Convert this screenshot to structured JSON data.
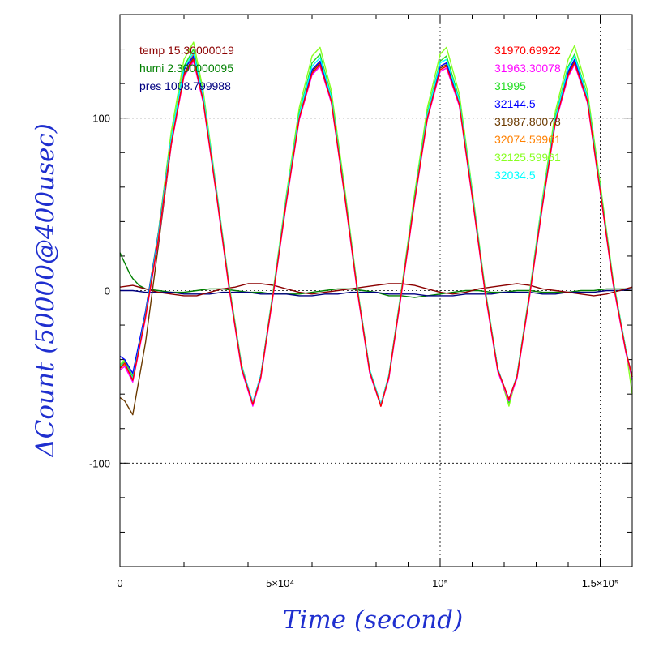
{
  "chart_data": {
    "type": "line",
    "title": "",
    "xlabel": "Time (second)",
    "ylabel": "ΔCount (50000@400usec)",
    "xlim": [
      0,
      160000
    ],
    "ylim": [
      -160,
      160
    ],
    "grid": true,
    "x_ticks": [
      {
        "value": 0,
        "label": "0"
      },
      {
        "value": 50000,
        "label": "5×10⁴"
      },
      {
        "value": 100000,
        "label": "10⁵"
      },
      {
        "value": 150000,
        "label": "1.5×10⁵"
      }
    ],
    "y_ticks": [
      {
        "value": 100,
        "label": "100"
      },
      {
        "value": 0,
        "label": "0"
      },
      {
        "value": -100,
        "label": "-100"
      }
    ],
    "legend_left": [
      {
        "label": "temp 15.30000019",
        "color": "#8b0000"
      },
      {
        "label": "humi 2.300000095",
        "color": "#008000"
      },
      {
        "label": "pres 1008.799988",
        "color": "#000080"
      }
    ],
    "legend_right": [
      {
        "label": "31970.69922",
        "color": "#ff0000"
      },
      {
        "label": "31963.30078",
        "color": "#ff00ff"
      },
      {
        "label": "31995",
        "color": "#22dd22"
      },
      {
        "label": "32144.5",
        "color": "#0000ff"
      },
      {
        "label": "31987.80078",
        "color": "#6b3a00"
      },
      {
        "label": "32074.59961",
        "color": "#ff8000"
      },
      {
        "label": "32125.59961",
        "color": "#88ff22"
      },
      {
        "label": "32034.5",
        "color": "#00ffff"
      }
    ],
    "series": [
      {
        "name": "31970.69922",
        "color": "#ff0000",
        "x": [
          0,
          1500,
          4000,
          8000,
          12000,
          16000,
          20000,
          23000,
          26000,
          30000,
          34000,
          38000,
          41500,
          44000,
          48000,
          52000,
          56000,
          60000,
          62500,
          66000,
          70000,
          74000,
          78000,
          81500,
          84000,
          88000,
          92000,
          96000,
          100000,
          102000,
          106000,
          110000,
          114000,
          118000,
          121500,
          124000,
          128000,
          132000,
          136000,
          140000,
          142000,
          146000,
          150000,
          154000,
          158000,
          160000
        ],
        "y": [
          -45,
          -42,
          -52,
          -15,
          30,
          85,
          125,
          134,
          110,
          58,
          3,
          -45,
          -66,
          -50,
          0,
          52,
          100,
          126,
          131,
          110,
          58,
          2,
          -47,
          -67,
          -50,
          0,
          52,
          100,
          128,
          130,
          108,
          55,
          0,
          -46,
          -63,
          -50,
          -2,
          50,
          98,
          125,
          132,
          110,
          58,
          5,
          -35,
          -50
        ]
      },
      {
        "name": "31963.30078",
        "color": "#ff00ff",
        "x": [
          0,
          1500,
          4000,
          8000,
          12000,
          16000,
          20000,
          23000,
          26000,
          30000,
          34000,
          38000,
          41500,
          44000,
          48000,
          52000,
          56000,
          60000,
          62500,
          66000,
          70000,
          74000,
          78000,
          81500,
          84000,
          88000,
          92000,
          96000,
          100000,
          102000,
          106000,
          110000,
          114000,
          118000,
          121500,
          124000,
          128000,
          132000,
          136000,
          140000,
          142000,
          146000,
          150000,
          154000,
          158000,
          160000
        ],
        "y": [
          -46,
          -44,
          -53,
          -16,
          29,
          84,
          124,
          133,
          109,
          57,
          2,
          -46,
          -67,
          -51,
          -1,
          51,
          99,
          125,
          130,
          109,
          57,
          1,
          -48,
          -67,
          -51,
          -1,
          51,
          99,
          127,
          129,
          107,
          54,
          -1,
          -47,
          -64,
          -51,
          -3,
          49,
          97,
          124,
          131,
          109,
          57,
          4,
          -36,
          -51
        ]
      },
      {
        "name": "31995",
        "color": "#22dd22",
        "x": [
          0,
          1500,
          4000,
          8000,
          12000,
          16000,
          20000,
          23000,
          26000,
          30000,
          34000,
          38000,
          41500,
          44000,
          48000,
          52000,
          56000,
          60000,
          62500,
          66000,
          70000,
          74000,
          78000,
          81500,
          84000,
          88000,
          92000,
          96000,
          100000,
          102000,
          106000,
          110000,
          114000,
          118000,
          121500,
          124000,
          128000,
          132000,
          136000,
          140000,
          142000,
          146000,
          150000,
          154000,
          158000,
          160000
        ],
        "y": [
          -44,
          -41,
          -50,
          -13,
          32,
          88,
          130,
          140,
          113,
          60,
          4,
          -44,
          -65,
          -49,
          1,
          54,
          103,
          132,
          137,
          113,
          60,
          3,
          -46,
          -66,
          -49,
          1,
          54,
          103,
          133,
          136,
          111,
          57,
          1,
          -45,
          -65,
          -49,
          -1,
          52,
          101,
          130,
          137,
          113,
          60,
          6,
          -34,
          -52
        ]
      },
      {
        "name": "32144.5",
        "color": "#0000ff",
        "x": [
          0,
          1500,
          4000,
          8000,
          12000,
          16000,
          20000,
          23000,
          26000,
          30000,
          34000,
          38000,
          41500,
          44000,
          48000,
          52000,
          56000,
          60000,
          62500,
          66000,
          70000,
          74000,
          78000,
          81500,
          84000,
          88000,
          92000,
          96000,
          100000,
          102000,
          106000,
          110000,
          114000,
          118000,
          121500,
          124000,
          128000,
          132000,
          136000,
          140000,
          142000,
          146000,
          150000,
          154000,
          158000,
          160000
        ],
        "y": [
          -38,
          -40,
          -48,
          -12,
          33,
          88,
          128,
          136,
          112,
          59,
          3,
          -44,
          -65,
          -49,
          0,
          53,
          101,
          128,
          133,
          111,
          58,
          2,
          -47,
          -66,
          -50,
          0,
          52,
          101,
          130,
          132,
          109,
          56,
          0,
          -46,
          -63,
          -50,
          -2,
          51,
          99,
          127,
          134,
          111,
          58,
          5,
          -35,
          -50
        ]
      },
      {
        "name": "31987.80078",
        "color": "#6b3a00",
        "x": [
          0,
          1500,
          4000,
          8000,
          12000,
          16000,
          20000,
          23000,
          26000,
          30000,
          34000,
          38000,
          41500,
          44000,
          48000,
          52000,
          56000,
          60000,
          62500,
          66000,
          70000,
          74000,
          78000,
          81500,
          84000,
          88000,
          92000,
          96000,
          100000,
          102000,
          106000,
          110000,
          114000,
          118000,
          121500,
          124000,
          128000,
          132000,
          136000,
          140000,
          142000,
          146000,
          150000,
          154000,
          158000,
          160000
        ],
        "y": [
          -62,
          -64,
          -72,
          -30,
          26,
          84,
          126,
          135,
          111,
          58,
          3,
          -45,
          -66,
          -50,
          0,
          52,
          100,
          127,
          132,
          110,
          58,
          2,
          -47,
          -67,
          -50,
          0,
          52,
          100,
          129,
          131,
          108,
          55,
          0,
          -46,
          -63,
          -50,
          -2,
          50,
          98,
          126,
          133,
          110,
          58,
          5,
          -35,
          -50
        ]
      },
      {
        "name": "32074.59961",
        "color": "#ff8000",
        "x": [
          0,
          1500,
          4000,
          8000,
          12000,
          16000,
          20000,
          23000,
          26000,
          30000,
          34000,
          38000,
          41500,
          44000,
          48000,
          52000,
          56000,
          60000,
          62500,
          66000,
          70000,
          74000,
          78000,
          81500,
          84000,
          88000,
          92000,
          96000,
          100000,
          102000,
          106000,
          110000,
          114000,
          118000,
          121500,
          124000,
          128000,
          132000,
          136000,
          140000,
          142000,
          146000,
          150000,
          154000,
          158000,
          160000
        ],
        "y": [
          -45,
          -43,
          -52,
          -15,
          31,
          87,
          128,
          137,
          112,
          59,
          3,
          -45,
          -66,
          -50,
          0,
          53,
          101,
          128,
          133,
          111,
          58,
          2,
          -47,
          -67,
          -50,
          0,
          52,
          101,
          130,
          132,
          109,
          56,
          0,
          -46,
          -64,
          -50,
          -2,
          51,
          99,
          127,
          134,
          111,
          58,
          5,
          -35,
          -50
        ]
      },
      {
        "name": "32125.59961",
        "color": "#88ff22",
        "x": [
          0,
          1500,
          4000,
          8000,
          12000,
          16000,
          20000,
          23000,
          26000,
          30000,
          34000,
          38000,
          41500,
          44000,
          48000,
          52000,
          56000,
          60000,
          62500,
          66000,
          70000,
          74000,
          78000,
          81500,
          84000,
          88000,
          92000,
          96000,
          100000,
          102000,
          106000,
          110000,
          114000,
          118000,
          121500,
          124000,
          128000,
          132000,
          136000,
          140000,
          142000,
          146000,
          150000,
          154000,
          158000,
          160000
        ],
        "y": [
          -43,
          -40,
          -50,
          -12,
          34,
          92,
          134,
          144,
          116,
          61,
          5,
          -43,
          -66,
          -49,
          2,
          56,
          106,
          136,
          141,
          116,
          62,
          4,
          -46,
          -66,
          -49,
          2,
          56,
          106,
          137,
          141,
          114,
          59,
          2,
          -45,
          -67,
          -49,
          0,
          54,
          104,
          134,
          142,
          116,
          62,
          7,
          -34,
          -60
        ]
      },
      {
        "name": "32034.5",
        "color": "#00ffff",
        "x": [
          0,
          1500,
          4000,
          8000,
          12000,
          16000,
          20000,
          23000,
          26000,
          30000,
          34000,
          38000,
          41500,
          44000,
          48000,
          52000,
          56000,
          60000,
          62500,
          66000,
          70000,
          74000,
          78000,
          81500,
          84000,
          88000,
          92000,
          96000,
          100000,
          102000,
          106000,
          110000,
          114000,
          118000,
          121500,
          124000,
          128000,
          132000,
          136000,
          140000,
          142000,
          146000,
          150000,
          154000,
          158000,
          160000
        ],
        "y": [
          -44,
          -42,
          -51,
          -14,
          32,
          88,
          129,
          138,
          113,
          60,
          4,
          -44,
          -65,
          -49,
          1,
          54,
          102,
          130,
          135,
          112,
          59,
          3,
          -46,
          -66,
          -49,
          1,
          53,
          102,
          132,
          134,
          110,
          57,
          1,
          -45,
          -64,
          -49,
          -1,
          52,
          100,
          129,
          136,
          112,
          59,
          6,
          -34,
          -51
        ]
      },
      {
        "name": "temp 15.30000019",
        "color": "#8b0000",
        "x": [
          0,
          4000,
          8000,
          12000,
          16000,
          20000,
          24000,
          28000,
          32000,
          36000,
          40000,
          44000,
          48000,
          52000,
          56000,
          60000,
          64000,
          68000,
          72000,
          76000,
          80000,
          84000,
          88000,
          92000,
          96000,
          100000,
          104000,
          108000,
          112000,
          116000,
          120000,
          124000,
          128000,
          132000,
          136000,
          140000,
          144000,
          148000,
          152000,
          156000,
          160000
        ],
        "y": [
          2,
          3,
          1,
          -1,
          -2,
          -3,
          -3,
          -1,
          1,
          2,
          4,
          4,
          3,
          1,
          -1,
          -2,
          -1,
          0,
          1,
          2,
          3,
          4,
          4,
          3,
          1,
          -1,
          -2,
          -1,
          1,
          2,
          3,
          4,
          3,
          1,
          0,
          -1,
          -2,
          -3,
          -2,
          0,
          2
        ]
      },
      {
        "name": "humi 2.300000095",
        "color": "#008000",
        "x": [
          0,
          1000,
          2000,
          3000,
          4000,
          5000,
          6000,
          7000,
          8000,
          12000,
          16000,
          20000,
          24000,
          28000,
          32000,
          36000,
          40000,
          44000,
          48000,
          52000,
          56000,
          60000,
          64000,
          68000,
          72000,
          76000,
          80000,
          84000,
          88000,
          92000,
          96000,
          100000,
          104000,
          108000,
          112000,
          116000,
          120000,
          124000,
          128000,
          132000,
          136000,
          140000,
          144000,
          148000,
          152000,
          156000,
          160000
        ],
        "y": [
          22,
          18,
          14,
          10,
          7,
          5,
          3,
          2,
          1,
          0,
          -1,
          -1,
          0,
          1,
          1,
          0,
          -1,
          -1,
          -2,
          -2,
          -2,
          -1,
          0,
          1,
          1,
          0,
          -1,
          -3,
          -3,
          -4,
          -3,
          -2,
          -1,
          0,
          0,
          -1,
          -1,
          0,
          0,
          -1,
          -1,
          -1,
          0,
          0,
          1,
          1,
          1
        ]
      },
      {
        "name": "pres 1008.799988",
        "color": "#000080",
        "x": [
          0,
          4000,
          8000,
          12000,
          16000,
          20000,
          24000,
          28000,
          32000,
          36000,
          40000,
          44000,
          48000,
          52000,
          56000,
          60000,
          64000,
          68000,
          72000,
          76000,
          80000,
          84000,
          88000,
          92000,
          96000,
          100000,
          104000,
          108000,
          112000,
          116000,
          120000,
          124000,
          128000,
          132000,
          136000,
          140000,
          144000,
          148000,
          152000,
          156000,
          160000
        ],
        "y": [
          0,
          0,
          -1,
          -1,
          -1,
          -2,
          -2,
          -2,
          -1,
          -1,
          -1,
          -2,
          -2,
          -2,
          -3,
          -3,
          -2,
          -2,
          -1,
          -1,
          -1,
          -2,
          -2,
          -2,
          -3,
          -3,
          -3,
          -2,
          -2,
          -2,
          -1,
          -1,
          -1,
          -2,
          -2,
          -1,
          -1,
          -1,
          0,
          0,
          1
        ]
      }
    ]
  }
}
